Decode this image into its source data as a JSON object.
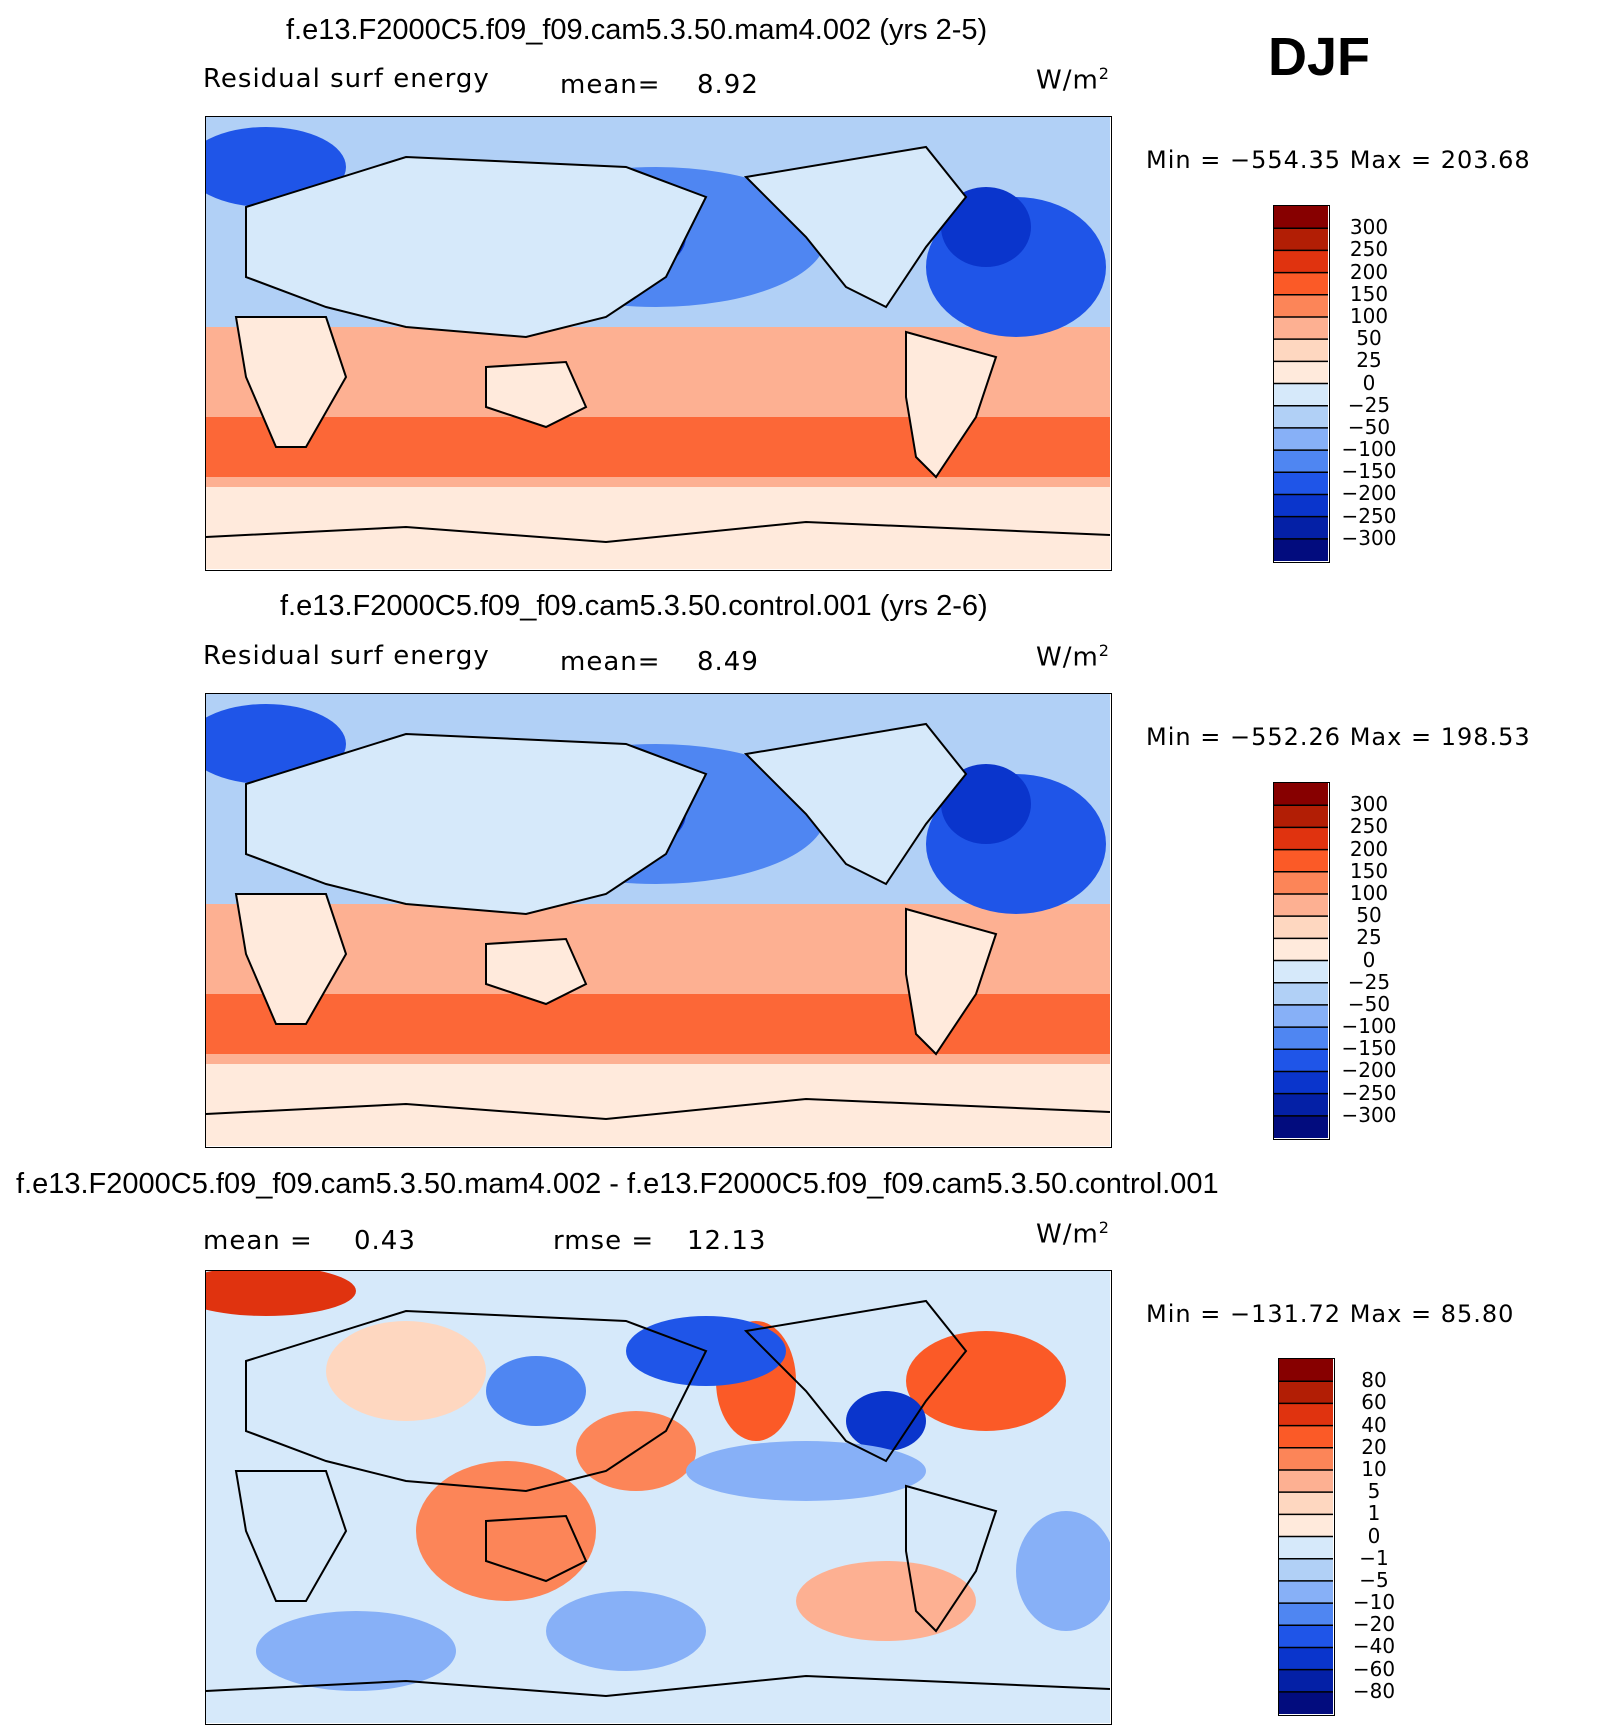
{
  "season": "DJF",
  "panels": [
    {
      "title": "f.e13.F2000C5.f09_f09.cam5.3.50.mam4.002 (yrs 2-5)",
      "left_label": "Residual surf energy",
      "stat_label": "mean=",
      "stat_value": "8.92",
      "units_base": "W/m",
      "units_exp": "2",
      "min_label": "Min",
      "min_value": "−554.35",
      "max_label": "Max",
      "max_value": "203.68"
    },
    {
      "title": "f.e13.F2000C5.f09_f09.cam5.3.50.control.001 (yrs 2-6)",
      "left_label": "Residual surf energy",
      "stat_label": "mean=",
      "stat_value": "8.49",
      "units_base": "W/m",
      "units_exp": "2",
      "min_label": "Min",
      "min_value": "−552.26",
      "max_label": "Max",
      "max_value": "198.53"
    },
    {
      "title": "f.e13.F2000C5.f09_f09.cam5.3.50.mam4.002 - f.e13.F2000C5.f09_f09.cam5.3.50.control.001",
      "mean_label": "mean =",
      "mean_value": "0.43",
      "rmse_label": "rmse =",
      "rmse_value": "12.13",
      "units_base": "W/m",
      "units_exp": "2",
      "min_label": "Min",
      "min_value": "−131.72",
      "max_label": "Max",
      "max_value": "85.80"
    }
  ],
  "chart_data": [
    {
      "type": "heatmap",
      "title": "f.e13.F2000C5.f09_f09.cam5.3.50.mam4.002 (yrs 2-5)",
      "variable": "Residual surf energy",
      "units": "W/m2",
      "mean": 8.92,
      "min": -554.35,
      "max": 203.68,
      "colorbar_levels": [
        "300",
        "250",
        "200",
        "150",
        "100",
        "50",
        "25",
        "0",
        "−25",
        "−50",
        "−100",
        "−150",
        "−200",
        "−250",
        "−300"
      ]
    },
    {
      "type": "heatmap",
      "title": "f.e13.F2000C5.f09_f09.cam5.3.50.control.001 (yrs 2-6)",
      "variable": "Residual surf energy",
      "units": "W/m2",
      "mean": 8.49,
      "min": -552.26,
      "max": 198.53,
      "colorbar_levels": [
        "300",
        "250",
        "200",
        "150",
        "100",
        "50",
        "25",
        "0",
        "−25",
        "−50",
        "−100",
        "−150",
        "−200",
        "−250",
        "−300"
      ]
    },
    {
      "type": "heatmap",
      "title": "f.e13.F2000C5.f09_f09.cam5.3.50.mam4.002 - f.e13.F2000C5.f09_f09.cam5.3.50.control.001",
      "units": "W/m2",
      "mean": 0.43,
      "rmse": 12.13,
      "min": -131.72,
      "max": 85.8,
      "colorbar_levels": [
        "80",
        "60",
        "40",
        "20",
        "10",
        "5",
        "1",
        "0",
        "−1",
        "−5",
        "−10",
        "−20",
        "−40",
        "−60",
        "−80"
      ]
    }
  ],
  "colors": {
    "abs_scale": [
      "#870000",
      "#b21e05",
      "#e0330f",
      "#fb5a27",
      "#fc8558",
      "#fdb092",
      "#fed7c0",
      "#ffeadc",
      "#d6e9fa",
      "#b1d0f6",
      "#87b0f7",
      "#4f86f2",
      "#1f55e8",
      "#0a35cc",
      "#0420a6",
      "#020c7e"
    ],
    "diff_scale": [
      "#870000",
      "#b21e05",
      "#e0330f",
      "#fb5a27",
      "#fc8558",
      "#fdb092",
      "#fed7c0",
      "#ffeadc",
      "#d6e9fa",
      "#b1d0f6",
      "#87b0f7",
      "#4f86f2",
      "#1f55e8",
      "#0a35cc",
      "#0420a6",
      "#020c7e"
    ]
  }
}
